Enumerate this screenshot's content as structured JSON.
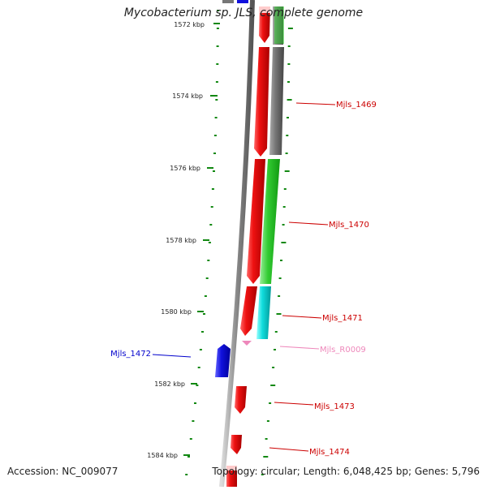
{
  "header": {
    "title": "Mycobacterium sp. JLS, complete genome"
  },
  "footer": {
    "accession": "Accession: NC_009077",
    "summary": "Topology: circular; Length: 6,048,425 bp; Genes: 5,796"
  },
  "ruler": {
    "tick_labels": [
      "1572 kbp",
      "1574 kbp",
      "1576 kbp",
      "1578 kbp",
      "1580 kbp",
      "1582 kbp",
      "1584 kbp"
    ],
    "color": "#118811"
  },
  "colors": {
    "backbone": "#8a8a8a",
    "forward_red": "#ee1111",
    "reverse_red": "#ee1111",
    "gray_feature": "#777777",
    "green_feature": "#33cc33",
    "cyan_feature": "#11dddd",
    "blue_feature": "#1111dd",
    "pink_rna": "#ee88bb",
    "light_pink": "#ffcccc",
    "light_green": "#99ee99"
  },
  "gene_labels": [
    {
      "text": "Mjls_1469",
      "color": "#cc0000"
    },
    {
      "text": "Mjls_1470",
      "color": "#cc0000"
    },
    {
      "text": "Mjls_1471",
      "color": "#cc0000"
    },
    {
      "text": "Mjls_R0009",
      "color": "#ee88bb"
    },
    {
      "text": "Mjls_1472",
      "color": "#0000cc"
    },
    {
      "text": "Mjls_1473",
      "color": "#cc0000"
    },
    {
      "text": "Mjls_1474",
      "color": "#cc0000"
    }
  ]
}
